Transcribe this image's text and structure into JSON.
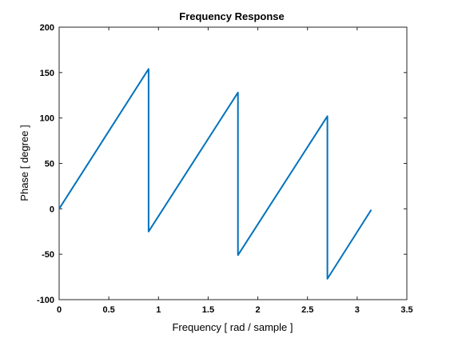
{
  "chart_data": {
    "type": "line",
    "title": "Frequency Response",
    "xlabel": "Frequency [ rad / sample ]",
    "ylabel": "Phase [ degree ]",
    "xlim": [
      0,
      3.5
    ],
    "ylim": [
      -100,
      200
    ],
    "xticks": [
      "0",
      "0.5",
      "1",
      "1.5",
      "2",
      "2.5",
      "3",
      "3.5"
    ],
    "yticks": [
      "200",
      "150",
      "100",
      "50",
      "0",
      "-50",
      "-100"
    ],
    "grid": false,
    "series": [
      {
        "color": "#0072bd",
        "x": [
          0,
          0.9,
          0.9,
          1.8,
          1.8,
          2.7,
          2.7,
          3.1416
        ],
        "y": [
          0,
          154,
          -25,
          128,
          -51,
          102,
          -77,
          -1
        ]
      }
    ]
  }
}
